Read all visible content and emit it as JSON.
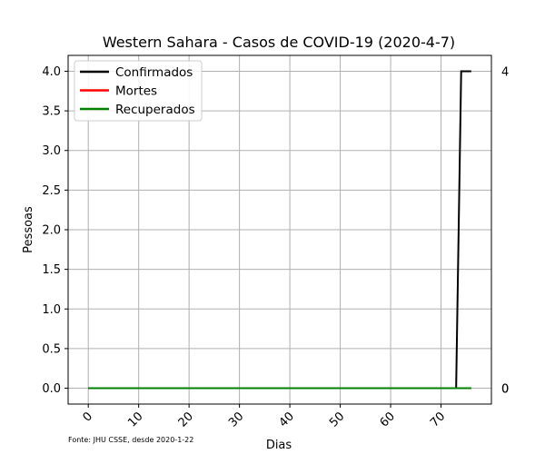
{
  "chart_data": {
    "type": "line",
    "title": "Western Sahara - Casos de COVID-19 (2020-4-7)",
    "xlabel": "Dias",
    "ylabel": "Pessoas",
    "xlim": [
      -4,
      80
    ],
    "ylim": [
      -0.2,
      4.2
    ],
    "xticks": [
      0,
      10,
      20,
      30,
      40,
      50,
      60,
      70
    ],
    "yticks": [
      0.0,
      0.5,
      1.0,
      1.5,
      2.0,
      2.5,
      3.0,
      3.5,
      4.0
    ],
    "ytick_labels": [
      "0.0",
      "0.5",
      "1.0",
      "1.5",
      "2.0",
      "2.5",
      "3.0",
      "3.5",
      "4.0"
    ],
    "grid": true,
    "legend_position": "top-left",
    "series": [
      {
        "name": "Confirmados",
        "color": "#000000",
        "x": [
          0,
          73,
          74,
          76
        ],
        "y": [
          0,
          0,
          4,
          4
        ]
      },
      {
        "name": "Mortes",
        "color": "#ff0000",
        "x": [
          0,
          76
        ],
        "y": [
          0,
          0
        ]
      },
      {
        "name": "Recuperados",
        "color": "#008000",
        "x": [
          0,
          76
        ],
        "y": [
          0,
          0
        ]
      }
    ],
    "end_labels": [
      "4",
      "0",
      "0"
    ],
    "source_note": "Fonte: JHU CSSE, desde 2020-1-22"
  }
}
